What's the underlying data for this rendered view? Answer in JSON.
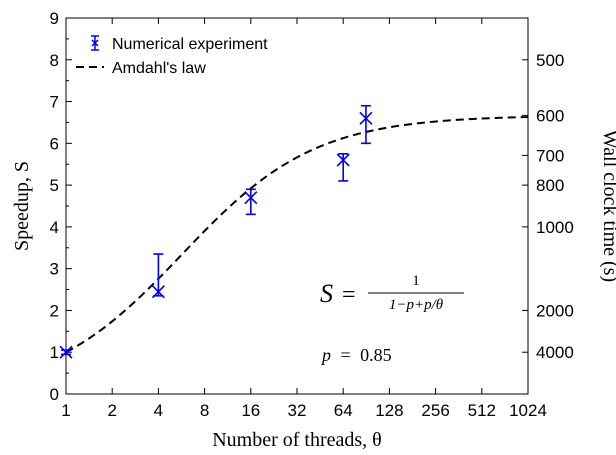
{
  "chart_data": {
    "type": "line",
    "x_scale": "log2",
    "x_ticks": [
      1,
      2,
      4,
      8,
      16,
      32,
      64,
      128,
      256,
      512,
      1024
    ],
    "x_tick_labels": [
      "1",
      "2",
      "4",
      "8",
      "16",
      "32",
      "64",
      "128",
      "256",
      "512",
      "1024"
    ],
    "xlim": [
      1,
      1024
    ],
    "ylim": [
      0,
      9
    ],
    "y_ticks": [
      0,
      1,
      2,
      3,
      4,
      5,
      6,
      7,
      8,
      9
    ],
    "y_tick_labels": [
      "0",
      "1",
      "2",
      "3",
      "4",
      "5",
      "6",
      "7",
      "8",
      "9"
    ],
    "xlabel": "Number of threads, θ",
    "ylabel": "Speedup, S",
    "y2label": "Wall clock time (s)",
    "y2_ticks": [
      {
        "label": "500",
        "speedup": 8.0
      },
      {
        "label": "600",
        "speedup": 6.67
      },
      {
        "label": "700",
        "speedup": 5.71
      },
      {
        "label": "800",
        "speedup": 5.0
      },
      {
        "label": "1000",
        "speedup": 4.0
      },
      {
        "label": "2000",
        "speedup": 2.0
      },
      {
        "label": "4000",
        "speedup": 1.0
      }
    ],
    "grid": false,
    "legend": {
      "position": "top-left",
      "entries": [
        {
          "name": "Numerical experiment",
          "style": "errorbar",
          "color": "#0000ee"
        },
        {
          "name": "Amdahl's law",
          "style": "dashed",
          "color": "#000000"
        }
      ]
    },
    "series": [
      {
        "name": "Numerical experiment",
        "type": "errorbar",
        "color": "#0000ee",
        "points": [
          {
            "x": 1,
            "y": 1.0,
            "ymin": 0.95,
            "ymax": 1.05
          },
          {
            "x": 4,
            "y": 2.45,
            "ymin": 2.35,
            "ymax": 3.35
          },
          {
            "x": 16,
            "y": 4.7,
            "ymin": 4.3,
            "ymax": 4.9
          },
          {
            "x": 64,
            "y": 5.6,
            "ymin": 5.1,
            "ymax": 5.75
          },
          {
            "x": 90,
            "y": 6.6,
            "ymin": 6.0,
            "ymax": 6.9
          }
        ]
      },
      {
        "name": "Amdahl's law",
        "type": "line",
        "style": "dashed",
        "color": "#000000",
        "p": 0.85
      }
    ],
    "annotations": {
      "formula": {
        "lhs": "S",
        "eq": "=",
        "numerator": "1",
        "denominator": "1−p+p/θ"
      },
      "parameter": {
        "name": "p",
        "eq": "=",
        "value": "0.85"
      }
    }
  }
}
